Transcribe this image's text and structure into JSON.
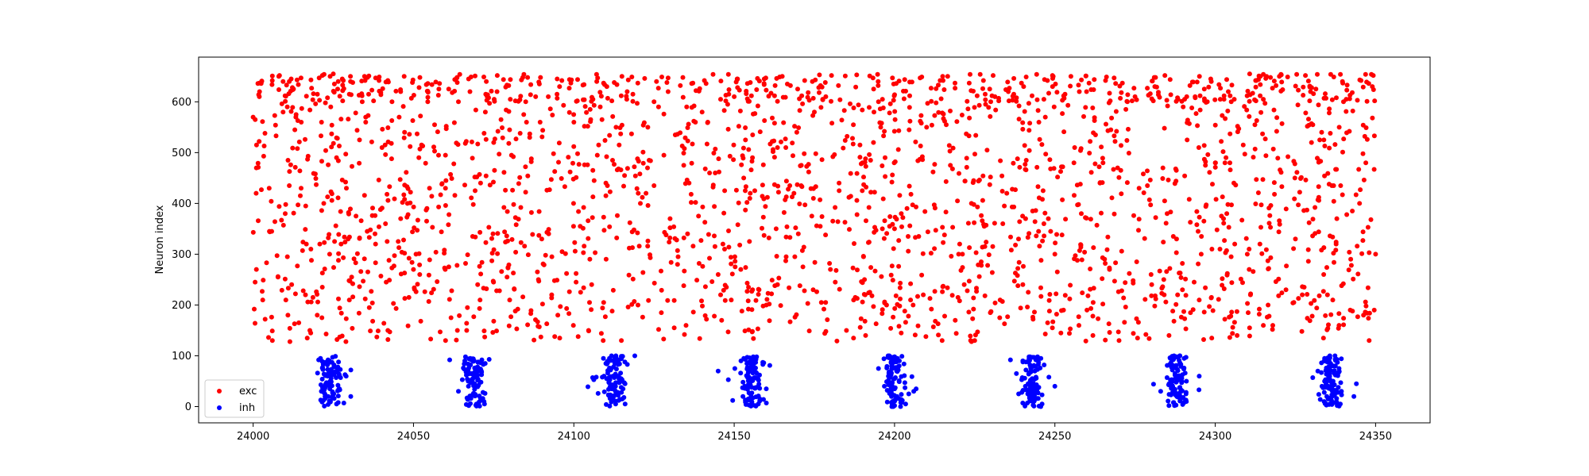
{
  "chart_data": {
    "type": "scatter",
    "title": "",
    "xlabel": "",
    "ylabel": "Neuron index",
    "xlim": [
      23983,
      24367
    ],
    "ylim": [
      -32,
      688
    ],
    "x_ticks": [
      24000,
      24050,
      24100,
      24150,
      24200,
      24250,
      24300,
      24350
    ],
    "y_ticks": [
      0,
      100,
      200,
      300,
      400,
      500,
      600
    ],
    "grid": false,
    "legend_position": "lower-left",
    "series": [
      {
        "name": "exc",
        "color": "#ff0000",
        "description": "dense random spiking, neurons 128-655, t = 24000-24350",
        "neuron_range": [
          128,
          655
        ],
        "time_range": [
          24000,
          24350
        ],
        "sample_points": [
          [
            24000,
            570
          ],
          [
            24001,
            470
          ],
          [
            24001,
            270
          ],
          [
            24002,
            620
          ],
          [
            24003,
            210
          ],
          [
            24005,
            430
          ],
          [
            24006,
            130
          ],
          [
            24008,
            650
          ],
          [
            24010,
            380
          ],
          [
            24012,
            240
          ],
          [
            24015,
            560
          ],
          [
            24018,
            310
          ],
          [
            24020,
            180
          ],
          [
            24024,
            650
          ],
          [
            24026,
            490
          ],
          [
            24030,
            210
          ],
          [
            24034,
            600
          ],
          [
            24038,
            340
          ],
          [
            24042,
            150
          ],
          [
            24046,
            620
          ],
          [
            24050,
            270
          ],
          [
            24055,
            430
          ],
          [
            24060,
            130
          ],
          [
            24064,
            600
          ],
          [
            24070,
            240
          ],
          [
            24075,
            520
          ],
          [
            24080,
            210
          ],
          [
            24085,
            600
          ],
          [
            24090,
            330
          ],
          [
            24095,
            180
          ],
          [
            24100,
            560
          ],
          [
            24105,
            290
          ],
          [
            24110,
            440
          ],
          [
            24115,
            650
          ],
          [
            24120,
            200
          ],
          [
            24125,
            600
          ],
          [
            24130,
            370
          ],
          [
            24135,
            160
          ],
          [
            24140,
            580
          ],
          [
            24145,
            260
          ],
          [
            24150,
            610
          ],
          [
            24155,
            420
          ],
          [
            24160,
            200
          ],
          [
            24165,
            650
          ],
          [
            24170,
            340
          ],
          [
            24175,
            580
          ],
          [
            24180,
            270
          ],
          [
            24185,
            150
          ],
          [
            24190,
            480
          ],
          [
            24195,
            600
          ],
          [
            24200,
            350
          ],
          [
            24205,
            210
          ],
          [
            24210,
            550
          ],
          [
            24215,
            650
          ],
          [
            24220,
            300
          ],
          [
            24225,
            130
          ],
          [
            24230,
            600
          ],
          [
            24235,
            420
          ],
          [
            24240,
            240
          ],
          [
            24245,
            560
          ],
          [
            24250,
            300
          ],
          [
            24255,
            650
          ],
          [
            24260,
            190
          ],
          [
            24265,
            480
          ],
          [
            24270,
            130
          ],
          [
            24275,
            610
          ],
          [
            24280,
            260
          ],
          [
            24285,
            380
          ],
          [
            24290,
            590
          ],
          [
            24295,
            210
          ],
          [
            24300,
            480
          ],
          [
            24305,
            600
          ],
          [
            24310,
            300
          ],
          [
            24315,
            160
          ],
          [
            24320,
            650
          ],
          [
            24325,
            330
          ],
          [
            24330,
            520
          ],
          [
            24335,
            220
          ],
          [
            24340,
            600
          ],
          [
            24345,
            400
          ],
          [
            24348,
            130
          ],
          [
            24349,
            630
          ],
          [
            24350,
            300
          ]
        ]
      },
      {
        "name": "inh",
        "color": "#0000ff",
        "description": "synchronous bursts, neurons 0-100, centred near t = 24024, 24069, 24113, 24155, 24200, 24243, 24288, 24336",
        "neuron_range": [
          0,
          100
        ],
        "burst_centers": [
          24024,
          24069,
          24113,
          24155,
          24200,
          24243,
          24288,
          24336
        ],
        "burst_width": 6,
        "sample_points": [
          [
            24021,
            95
          ],
          [
            24024,
            50
          ],
          [
            24026,
            5
          ],
          [
            24023,
            20
          ],
          [
            24029,
            60
          ],
          [
            24066,
            90
          ],
          [
            24069,
            45
          ],
          [
            24072,
            10
          ],
          [
            24070,
            70
          ],
          [
            24064,
            30
          ],
          [
            24110,
            85
          ],
          [
            24113,
            40
          ],
          [
            24116,
            5
          ],
          [
            24107,
            58
          ],
          [
            24119,
            100
          ],
          [
            24153,
            95
          ],
          [
            24155,
            50
          ],
          [
            24158,
            15
          ],
          [
            24145,
            70
          ],
          [
            24160,
            35
          ],
          [
            24198,
            100
          ],
          [
            24200,
            55
          ],
          [
            24202,
            10
          ],
          [
            24206,
            30
          ],
          [
            24195,
            75
          ],
          [
            24240,
            90
          ],
          [
            24243,
            45
          ],
          [
            24246,
            5
          ],
          [
            24250,
            40
          ],
          [
            24238,
            65
          ],
          [
            24286,
            95
          ],
          [
            24288,
            50
          ],
          [
            24291,
            10
          ],
          [
            24295,
            60
          ],
          [
            24283,
            30
          ],
          [
            24334,
            90
          ],
          [
            24336,
            40
          ],
          [
            24339,
            5
          ],
          [
            24344,
            45
          ],
          [
            24332,
            70
          ]
        ]
      }
    ]
  }
}
